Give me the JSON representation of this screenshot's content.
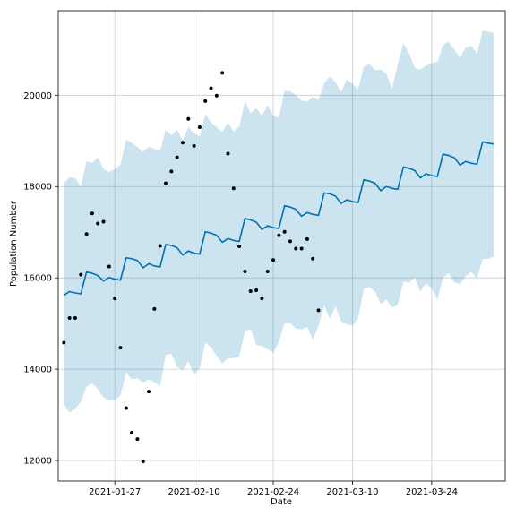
{
  "chart_data": {
    "type": "line",
    "xlabel": "Date",
    "ylabel": "Population Number",
    "grid": true,
    "x_axis_type": "date",
    "xlim": [
      "2021-01-17",
      "2021-04-06"
    ],
    "ylim": [
      11550,
      21850
    ],
    "x_tick_labels": [
      "2021-01-27",
      "2021-02-10",
      "2021-02-24",
      "2021-03-10",
      "2021-03-24"
    ],
    "y_ticks": [
      12000,
      14000,
      16000,
      18000,
      20000
    ],
    "colors": {
      "forecast_line": "#0072B2",
      "uncertainty_band": "#0072B2",
      "observed_points": "#000000",
      "grid": "#cccccc",
      "axes": "#000000"
    },
    "forecast": {
      "x": [
        "2021-01-18",
        "2021-01-19",
        "2021-01-20",
        "2021-01-21",
        "2021-01-22",
        "2021-01-23",
        "2021-01-24",
        "2021-01-25",
        "2021-01-26",
        "2021-01-27",
        "2021-01-28",
        "2021-01-29",
        "2021-01-30",
        "2021-01-31",
        "2021-02-01",
        "2021-02-02",
        "2021-02-03",
        "2021-02-04",
        "2021-02-05",
        "2021-02-06",
        "2021-02-07",
        "2021-02-08",
        "2021-02-09",
        "2021-02-10",
        "2021-02-11",
        "2021-02-12",
        "2021-02-13",
        "2021-02-14",
        "2021-02-15",
        "2021-02-16",
        "2021-02-17",
        "2021-02-18",
        "2021-02-19",
        "2021-02-20",
        "2021-02-21",
        "2021-02-22",
        "2021-02-23",
        "2021-02-24",
        "2021-02-25",
        "2021-02-26",
        "2021-02-27",
        "2021-02-28",
        "2021-03-01",
        "2021-03-02",
        "2021-03-03",
        "2021-03-04",
        "2021-03-05",
        "2021-03-06",
        "2021-03-07",
        "2021-03-08",
        "2021-03-09",
        "2021-03-10",
        "2021-03-11",
        "2021-03-12",
        "2021-03-13",
        "2021-03-14",
        "2021-03-15",
        "2021-03-16",
        "2021-03-17",
        "2021-03-18",
        "2021-03-19",
        "2021-03-20",
        "2021-03-21",
        "2021-03-22",
        "2021-03-23",
        "2021-03-24",
        "2021-03-25",
        "2021-03-26",
        "2021-03-27",
        "2021-03-28",
        "2021-03-29",
        "2021-03-30",
        "2021-03-31",
        "2021-04-01",
        "2021-04-02",
        "2021-04-03",
        "2021-04-04"
      ],
      "yhat": [
        15620,
        15700,
        15670,
        15650,
        16130,
        16100,
        16050,
        15930,
        16010,
        15970,
        15950,
        16440,
        16420,
        16380,
        16220,
        16310,
        16260,
        16240,
        16730,
        16710,
        16660,
        16500,
        16590,
        16540,
        16520,
        17010,
        16980,
        16930,
        16780,
        16860,
        16820,
        16800,
        17300,
        17270,
        17220,
        17060,
        17140,
        17100,
        17080,
        17580,
        17550,
        17500,
        17350,
        17430,
        17390,
        17370,
        17860,
        17840,
        17790,
        17630,
        17710,
        17670,
        17650,
        18150,
        18120,
        18070,
        17910,
        18000,
        17960,
        17940,
        18430,
        18400,
        18350,
        18190,
        18280,
        18240,
        18220,
        18710,
        18680,
        18630,
        18470,
        18550,
        18510,
        18490,
        18980,
        18950,
        18930
      ],
      "yhat_upper": [
        18080,
        18200,
        18180,
        18000,
        18550,
        18520,
        18640,
        18380,
        18320,
        18380,
        18480,
        19030,
        18960,
        18860,
        18760,
        18870,
        18830,
        18780,
        19240,
        19120,
        19240,
        19010,
        19300,
        19170,
        19100,
        19580,
        19410,
        19300,
        19200,
        19400,
        19200,
        19320,
        19860,
        19600,
        19720,
        19550,
        19780,
        19560,
        19500,
        20100,
        20080,
        20000,
        19880,
        19860,
        19960,
        19890,
        20260,
        20410,
        20290,
        20070,
        20350,
        20250,
        20130,
        20620,
        20680,
        20550,
        20560,
        20470,
        20140,
        20680,
        21140,
        20920,
        20600,
        20560,
        20650,
        20710,
        20730,
        21100,
        21170,
        21000,
        20820,
        21040,
        21080,
        20900,
        21420,
        21390,
        21360
      ],
      "yhat_lower": [
        13240,
        13040,
        13140,
        13280,
        13620,
        13690,
        13560,
        13380,
        13310,
        13320,
        13420,
        13930,
        13780,
        13800,
        13710,
        13780,
        13720,
        13630,
        14310,
        14340,
        14050,
        13980,
        14180,
        13870,
        14020,
        14580,
        14480,
        14290,
        14130,
        14240,
        14240,
        14280,
        14830,
        14880,
        14530,
        14510,
        14440,
        14360,
        14590,
        15020,
        15010,
        14890,
        14870,
        14930,
        14650,
        14950,
        15400,
        15100,
        15370,
        15050,
        14980,
        14960,
        15110,
        15760,
        15800,
        15700,
        15430,
        15520,
        15350,
        15410,
        15920,
        15890,
        16010,
        15700,
        15880,
        15770,
        15530,
        16000,
        16110,
        15900,
        15860,
        16040,
        16130,
        15990,
        16410,
        16420,
        16470
      ]
    },
    "observed": {
      "x": [
        "2021-01-18",
        "2021-01-19",
        "2021-01-20",
        "2021-01-21",
        "2021-01-22",
        "2021-01-23",
        "2021-01-24",
        "2021-01-25",
        "2021-01-26",
        "2021-01-27",
        "2021-01-28",
        "2021-01-29",
        "2021-01-30",
        "2021-01-31",
        "2021-02-01",
        "2021-02-02",
        "2021-02-03",
        "2021-02-04",
        "2021-02-05",
        "2021-02-06",
        "2021-02-07",
        "2021-02-08",
        "2021-02-09",
        "2021-02-10",
        "2021-02-11",
        "2021-02-12",
        "2021-02-13",
        "2021-02-14",
        "2021-02-15",
        "2021-02-16",
        "2021-02-17",
        "2021-02-18",
        "2021-02-19",
        "2021-02-20",
        "2021-02-21",
        "2021-02-22",
        "2021-02-23",
        "2021-02-24",
        "2021-02-25",
        "2021-02-26",
        "2021-02-27",
        "2021-02-28",
        "2021-03-01",
        "2021-03-02",
        "2021-03-03",
        "2021-03-04",
        "2021-03-05"
      ],
      "y": [
        14580,
        15120,
        15120,
        16070,
        16960,
        17410,
        17190,
        17230,
        16250,
        15550,
        14470,
        13150,
        12610,
        12470,
        11980,
        13510,
        15320,
        16700,
        18070,
        18330,
        18640,
        18960,
        19480,
        18890,
        19300,
        19870,
        20150,
        19990,
        20490,
        18720,
        17960,
        16690,
        16140,
        15710,
        15730,
        15550,
        16140,
        16390,
        16930,
        17010,
        16800,
        16640,
        16640,
        16850,
        16420,
        15290,
        null
      ]
    }
  }
}
